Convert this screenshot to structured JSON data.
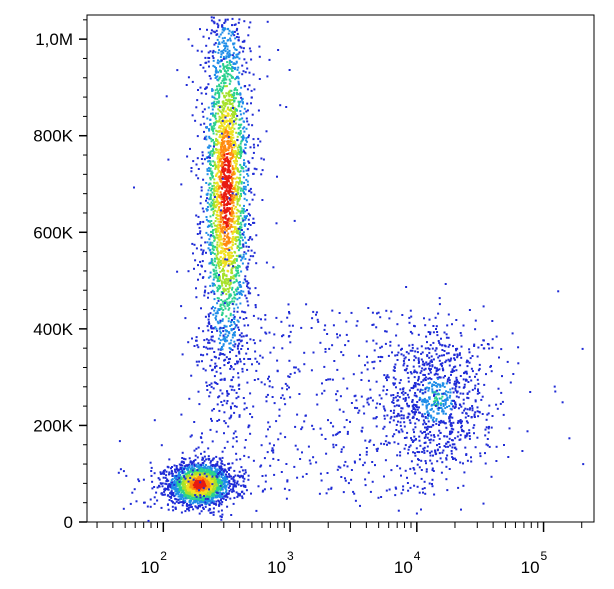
{
  "chart_data": {
    "type": "scatter",
    "title": "",
    "xlabel": "",
    "ylabel": "",
    "x_scale": "log",
    "y_scale": "linear",
    "xlim": [
      25,
      250000
    ],
    "ylim": [
      0,
      1050000
    ],
    "grid": false,
    "legend": "none",
    "y_ticks": [
      {
        "value": 0,
        "label": "0"
      },
      {
        "value": 200000,
        "label": "200K"
      },
      {
        "value": 400000,
        "label": "400K"
      },
      {
        "value": 600000,
        "label": "600K"
      },
      {
        "value": 800000,
        "label": "800K"
      },
      {
        "value": 1000000,
        "label": "1,0M"
      }
    ],
    "x_ticks": [
      {
        "value": 100,
        "base": "10",
        "exp": "2"
      },
      {
        "value": 1000,
        "base": "10",
        "exp": "3"
      },
      {
        "value": 10000,
        "base": "10",
        "exp": "4"
      },
      {
        "value": 100000,
        "base": "10",
        "exp": "5"
      }
    ],
    "populations": [
      {
        "x_center": 190,
        "y_center": 80000,
        "x_spread_decades": 0.12,
        "y_spread": 22000,
        "density": "high",
        "points": 1800
      },
      {
        "x_center": 310,
        "y_center": 690000,
        "x_spread_decades": 0.09,
        "y_spread": 180000,
        "density": "high",
        "points": 2600
      },
      {
        "x_center": 14000,
        "y_center": 255000,
        "x_spread_decades": 0.22,
        "y_spread": 75000,
        "density": "low",
        "points": 900
      }
    ],
    "color_scale": [
      "#1f2bd6",
      "#1e8de8",
      "#2bd18f",
      "#a6e22b",
      "#f0e020",
      "#ff8a10",
      "#e81a10"
    ]
  }
}
